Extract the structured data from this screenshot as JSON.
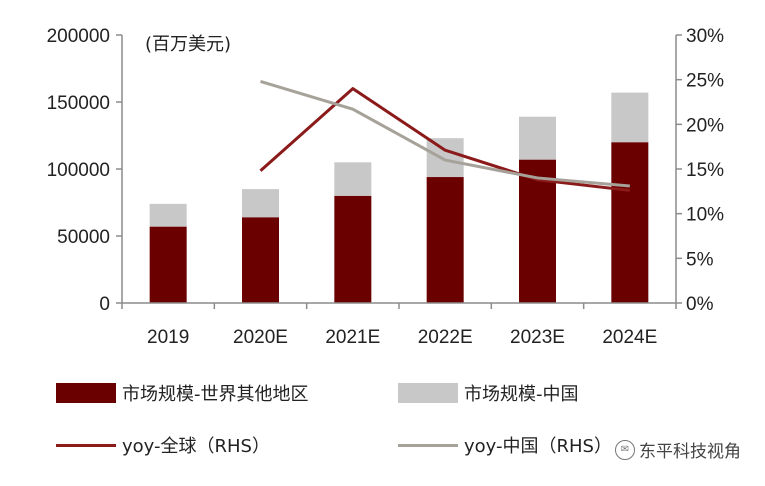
{
  "chart_data": {
    "type": "bar",
    "unit_label": "(百万美元)",
    "categories": [
      "2019",
      "2020E",
      "2021E",
      "2022E",
      "2023E",
      "2024E"
    ],
    "stacked": true,
    "y_left": {
      "ylim": [
        0,
        200000
      ],
      "ticks": [
        "0",
        "50000",
        "100000",
        "150000",
        "200000"
      ]
    },
    "y_right": {
      "ylim": [
        0,
        0.3
      ],
      "ticks": [
        "0%",
        "5%",
        "10%",
        "15%",
        "20%",
        "25%",
        "30%"
      ]
    },
    "bar_series": [
      {
        "name": "市场规模-世界其他地区",
        "color": "#6b0000",
        "values": [
          57000,
          64000,
          80000,
          94000,
          107000,
          120000
        ]
      },
      {
        "name": "市场规模-中国",
        "color": "#c8c8c8",
        "values": [
          17000,
          21000,
          25000,
          29000,
          32000,
          37000
        ]
      }
    ],
    "line_series": [
      {
        "name": "yoy-全球（RHS）",
        "color": "#8b1a1a",
        "axis": "right",
        "values": [
          null,
          0.148,
          0.24,
          0.171,
          0.138,
          0.126
        ]
      },
      {
        "name": "yoy-中国（RHS）",
        "color": "#a6a29a",
        "axis": "right",
        "values": [
          null,
          0.248,
          0.217,
          0.16,
          0.14,
          0.131
        ]
      }
    ]
  },
  "legend": {
    "rest_of_world": "市场规模-世界其他地区",
    "china": "市场规模-中国",
    "yoy_global": "yoy-全球（RHS）",
    "yoy_china": "yoy-中国（RHS）"
  },
  "colors": {
    "rest_of_world": "#6b0000",
    "china": "#c8c8c8",
    "yoy_global": "#8b1a1a",
    "yoy_china": "#a6a29a"
  },
  "watermark": {
    "text": "东平科技视角",
    "icon": "wechat-icon"
  }
}
